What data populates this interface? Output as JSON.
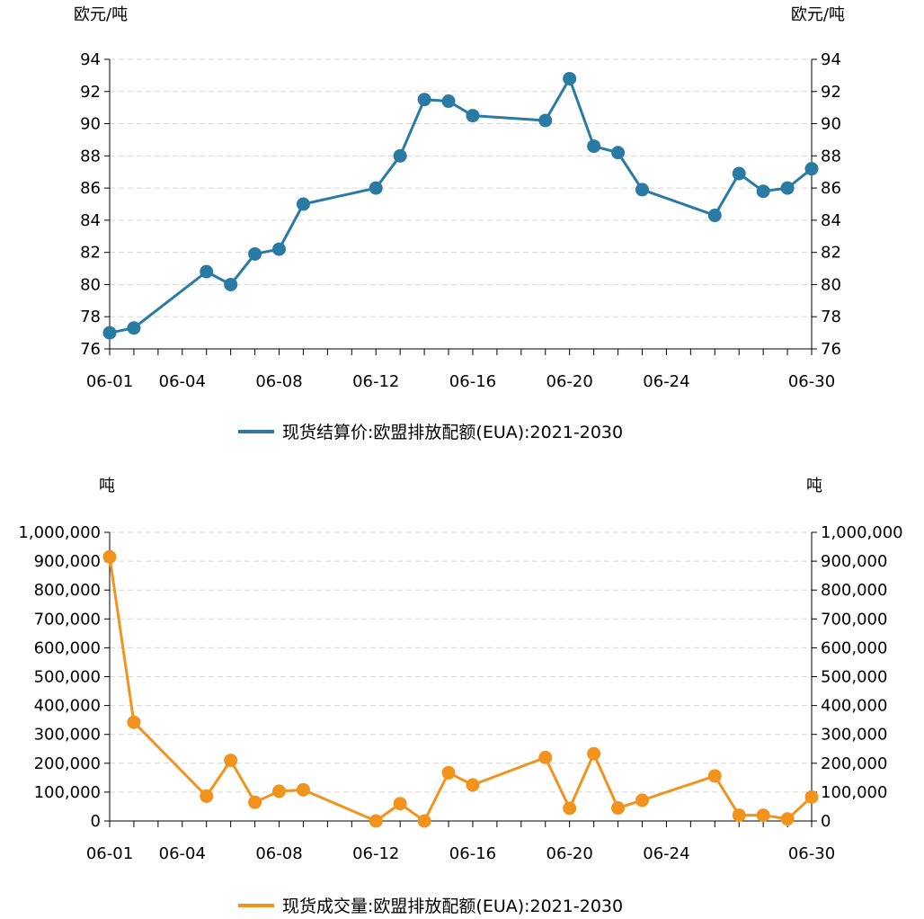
{
  "chart_data": [
    {
      "type": "line",
      "name": "price",
      "color": "#2a7aa6",
      "unit_left": "欧元/吨",
      "unit_right": "欧元/吨",
      "legend": "现货结算价:欧盟排放配额(EUA):2021-2030",
      "ylim": [
        76,
        94
      ],
      "yticks": [
        76,
        78,
        80,
        82,
        84,
        86,
        88,
        90,
        92,
        94
      ],
      "ytick_labels": [
        "76",
        "78",
        "80",
        "82",
        "84",
        "86",
        "88",
        "90",
        "92",
        "94"
      ],
      "xlim": [
        1,
        30
      ],
      "xticks": [
        1,
        4,
        8,
        12,
        16,
        20,
        24,
        30
      ],
      "xtick_labels": [
        "06-01",
        "06-04",
        "06-08",
        "06-12",
        "06-16",
        "06-20",
        "06-24",
        "06-30"
      ],
      "x": [
        1,
        2,
        5,
        6,
        7,
        8,
        9,
        12,
        13,
        14,
        15,
        16,
        19,
        20,
        21,
        22,
        23,
        26,
        27,
        28,
        29,
        30
      ],
      "values": [
        77.0,
        77.3,
        80.8,
        80.0,
        81.9,
        82.2,
        85.0,
        86.0,
        88.0,
        91.5,
        91.4,
        90.5,
        90.2,
        92.8,
        88.6,
        88.2,
        85.9,
        84.3,
        86.9,
        85.8,
        86.0,
        87.2
      ]
    },
    {
      "type": "line",
      "name": "volume",
      "color": "#f2931e",
      "unit_left": "吨",
      "unit_right": "吨",
      "legend": "现货成交量:欧盟排放配额(EUA):2021-2030",
      "ylim": [
        0,
        1000000
      ],
      "yticks": [
        0,
        100000,
        200000,
        300000,
        400000,
        500000,
        600000,
        700000,
        800000,
        900000,
        1000000
      ],
      "ytick_labels": [
        "0",
        "100,000",
        "200,000",
        "300,000",
        "400,000",
        "500,000",
        "600,000",
        "700,000",
        "800,000",
        "900,000",
        "1,000,000"
      ],
      "xlim": [
        1,
        30
      ],
      "xticks": [
        1,
        4,
        8,
        12,
        16,
        20,
        24,
        30
      ],
      "xtick_labels": [
        "06-01",
        "06-04",
        "06-08",
        "06-12",
        "06-16",
        "06-20",
        "06-24",
        "06-30"
      ],
      "x": [
        1,
        2,
        5,
        6,
        7,
        8,
        9,
        12,
        13,
        14,
        15,
        16,
        19,
        20,
        21,
        22,
        23,
        26,
        27,
        28,
        29,
        30
      ],
      "values": [
        915000,
        342000,
        86000,
        210000,
        65000,
        103000,
        108000,
        0,
        60000,
        0,
        167000,
        125000,
        220000,
        44000,
        233000,
        45000,
        72000,
        156000,
        20000,
        20000,
        7000,
        83000
      ]
    }
  ]
}
